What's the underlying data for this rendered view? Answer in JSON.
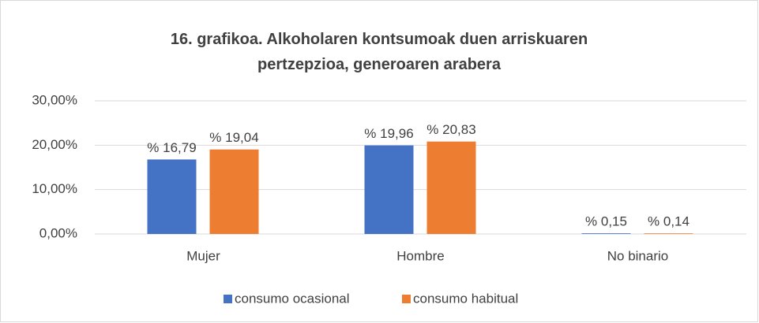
{
  "chart_data": {
    "type": "bar",
    "title": "16. grafikoa. Alkoholaren kontsumoak duen arriskuaren pertzepzioa, generoaren arabera",
    "categories": [
      "Mujer",
      "Hombre",
      "No binario"
    ],
    "series": [
      {
        "name": "consumo ocasional",
        "color": "#4472c4",
        "values": [
          16.79,
          19.96,
          0.15
        ],
        "value_labels": [
          "% 16,79",
          "% 19,96",
          "% 0,15"
        ]
      },
      {
        "name": "consumo habitual",
        "color": "#ed7d31",
        "values": [
          19.04,
          20.83,
          0.14
        ],
        "value_labels": [
          "% 19,04",
          "% 20,83",
          "% 0,14"
        ]
      }
    ],
    "ylim": [
      0,
      30
    ],
    "yticks": [
      {
        "value": 0,
        "label": "0,00%"
      },
      {
        "value": 10,
        "label": "10,00%"
      },
      {
        "value": 20,
        "label": "20,00%"
      },
      {
        "value": 30,
        "label": "30,00%"
      }
    ],
    "grid": true,
    "legend": "bottom"
  }
}
